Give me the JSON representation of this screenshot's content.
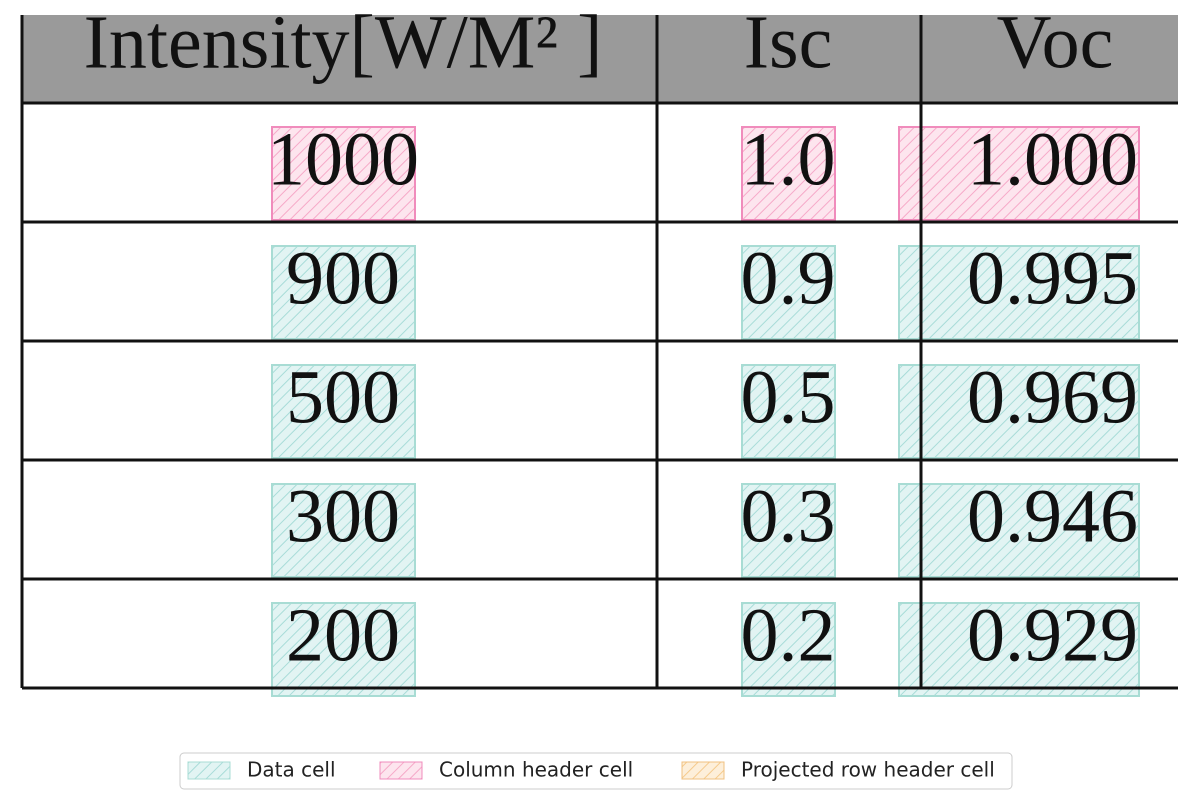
{
  "table": {
    "header": [
      "Intensity[W/M² ]",
      "Isc",
      "Voc"
    ],
    "rows": [
      [
        "1000",
        "1.0",
        "1.000"
      ],
      [
        "900",
        "0.9",
        "0.995"
      ],
      [
        "500",
        "0.5",
        "0.969"
      ],
      [
        "300",
        "0.3",
        "0.946"
      ],
      [
        "200",
        "0.2",
        "0.929"
      ]
    ]
  },
  "legend": [
    "Data cell",
    "Column header cell",
    "Projected row header cell"
  ]
}
